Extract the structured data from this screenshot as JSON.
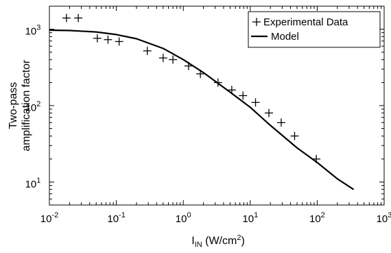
{
  "chart_data": {
    "type": "scatter",
    "xscale": "log",
    "yscale": "log",
    "xlim": [
      0.01,
      1000
    ],
    "ylim": [
      5,
      2000
    ],
    "x_ticks": [
      {
        "base": "10",
        "exp": "-2",
        "value": 0.01
      },
      {
        "base": "10",
        "exp": "-1",
        "value": 0.1
      },
      {
        "base": "10",
        "exp": "0",
        "value": 1
      },
      {
        "base": "10",
        "exp": "1",
        "value": 10
      },
      {
        "base": "10",
        "exp": "2",
        "value": 100
      },
      {
        "base": "10",
        "exp": "3",
        "value": 1000
      }
    ],
    "y_ticks": [
      {
        "base": "10",
        "exp": "1",
        "value": 10
      },
      {
        "base": "10",
        "exp": "2",
        "value": 100
      },
      {
        "base": "10",
        "exp": "3",
        "value": 1000
      }
    ],
    "xlabel": {
      "main": "I",
      "sub": "IN",
      "unit": " (W/cm",
      "sup": "2",
      "end": ")"
    },
    "ylabel": [
      "Two-pass",
      "amplification factor"
    ],
    "legend_position": "top-right",
    "grid": false,
    "series": [
      {
        "name": "Experimental Data",
        "type": "scatter",
        "marker": "+",
        "x": [
          0.018,
          0.027,
          0.052,
          0.075,
          0.11,
          0.29,
          0.5,
          0.7,
          1.2,
          1.8,
          3.3,
          5.3,
          7.8,
          12,
          19,
          29,
          46,
          97
        ],
        "y": [
          1400,
          1400,
          760,
          730,
          690,
          520,
          420,
          400,
          330,
          260,
          200,
          160,
          135,
          110,
          80,
          60,
          40,
          20
        ]
      },
      {
        "name": "Model",
        "type": "line",
        "x": [
          0.01,
          0.02,
          0.05,
          0.1,
          0.2,
          0.5,
          1,
          2,
          5,
          10,
          20,
          50,
          100,
          200,
          350
        ],
        "y": [
          970,
          960,
          920,
          850,
          750,
          560,
          400,
          270,
          150,
          95,
          55,
          28,
          18,
          11,
          8
        ]
      }
    ]
  }
}
